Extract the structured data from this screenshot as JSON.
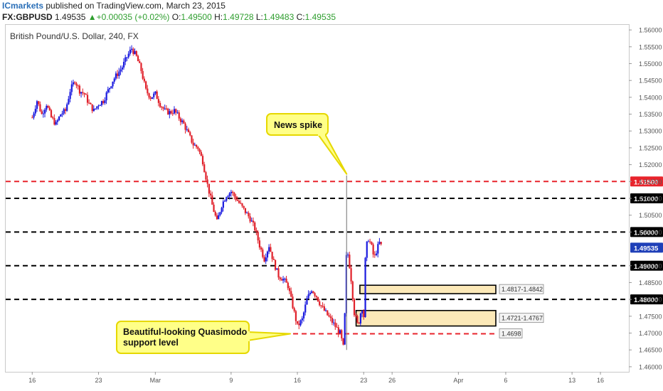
{
  "header": {
    "publisher": "ICmarkets",
    "published_text": "published on TradingView.com, March 23, 2015",
    "symbol": "FX:GBPUSD",
    "last": "1.49535",
    "change_arrow": "▲",
    "change": "+0.00035 (+0.02%)",
    "o_label": "O:",
    "o_value": "1.49500",
    "h_label": "H:",
    "h_value": "1.49728",
    "l_label": "L:",
    "l_value": "1.49483",
    "c_label": "C:",
    "c_value": "1.49535"
  },
  "colors": {
    "bull": "#1a1adf",
    "bear": "#e0202a",
    "red_level": "#e8242c",
    "black_level": "#000000",
    "zone_fill": "#fce9b8",
    "callout_fill": "#ffff88",
    "callout_border": "#e6d800",
    "price_badge": "#1e3fb8"
  },
  "chart_data": {
    "type": "candlestick",
    "title": "British Pound/U.S. Dollar, 240, FX",
    "ylim": [
      1.4585,
      1.5615
    ],
    "y_ticks": [
      "1.56000",
      "1.55500",
      "1.55000",
      "1.54500",
      "1.54000",
      "1.53500",
      "1.53000",
      "1.52500",
      "1.52000",
      "1.51500",
      "1.51000",
      "1.50500",
      "1.50000",
      "1.49535",
      "1.49000",
      "1.48500",
      "1.48000",
      "1.47500",
      "1.47000",
      "1.46500",
      "1.46000"
    ],
    "x_ticks": [
      {
        "label": "16",
        "day": 16
      },
      {
        "label": "23",
        "day": 23
      },
      {
        "label": "Mar",
        "day": 29
      },
      {
        "label": "9",
        "day": 37
      },
      {
        "label": "16",
        "day": 44
      },
      {
        "label": "23",
        "day": 51
      },
      {
        "label": "26",
        "day": 54
      },
      {
        "label": "Apr",
        "day": 61
      },
      {
        "label": "6",
        "day": 66
      },
      {
        "label": "13",
        "day": 73
      },
      {
        "label": "16",
        "day": 76
      }
    ],
    "x_axis_unit": "day (16 = Feb 16, 2015)",
    "price_path": [
      [
        16.0,
        1.534
      ],
      [
        16.5,
        1.539
      ],
      [
        17.0,
        1.535
      ],
      [
        17.5,
        1.538
      ],
      [
        18.0,
        1.534
      ],
      [
        18.5,
        1.532
      ],
      [
        19.0,
        1.535
      ],
      [
        19.5,
        1.536
      ],
      [
        20.0,
        1.542
      ],
      [
        20.5,
        1.545
      ],
      [
        21.0,
        1.542
      ],
      [
        21.5,
        1.541
      ],
      [
        22.0,
        1.538
      ],
      [
        22.5,
        1.536
      ],
      [
        23.0,
        1.538
      ],
      [
        23.5,
        1.539
      ],
      [
        24.0,
        1.542
      ],
      [
        24.5,
        1.545
      ],
      [
        25.0,
        1.547
      ],
      [
        25.5,
        1.549
      ],
      [
        26.0,
        1.552
      ],
      [
        26.5,
        1.5545
      ],
      [
        27.0,
        1.552
      ],
      [
        27.5,
        1.548
      ],
      [
        28.0,
        1.542
      ],
      [
        28.5,
        1.54
      ],
      [
        29.0,
        1.541
      ],
      [
        29.5,
        1.538
      ],
      [
        30.0,
        1.536
      ],
      [
        30.5,
        1.5355
      ],
      [
        31.0,
        1.536
      ],
      [
        31.5,
        1.534
      ],
      [
        32.0,
        1.532
      ],
      [
        32.5,
        1.529
      ],
      [
        33.0,
        1.526
      ],
      [
        33.5,
        1.525
      ],
      [
        34.0,
        1.521
      ],
      [
        34.5,
        1.514
      ],
      [
        35.0,
        1.508
      ],
      [
        35.5,
        1.503
      ],
      [
        36.0,
        1.508
      ],
      [
        36.5,
        1.511
      ],
      [
        37.0,
        1.512
      ],
      [
        37.5,
        1.51
      ],
      [
        38.0,
        1.508
      ],
      [
        38.5,
        1.506
      ],
      [
        39.0,
        1.504
      ],
      [
        39.5,
        1.501
      ],
      [
        40.0,
        1.496
      ],
      [
        40.5,
        1.492
      ],
      [
        41.0,
        1.496
      ],
      [
        41.5,
        1.491
      ],
      [
        42.0,
        1.487
      ],
      [
        42.5,
        1.486
      ],
      [
        43.0,
        1.484
      ],
      [
        43.5,
        1.478
      ],
      [
        44.0,
        1.472
      ],
      [
        44.5,
        1.474
      ],
      [
        45.0,
        1.48
      ],
      [
        45.5,
        1.483
      ],
      [
        46.0,
        1.481
      ],
      [
        46.5,
        1.478
      ],
      [
        47.0,
        1.476
      ],
      [
        47.5,
        1.474
      ],
      [
        48.0,
        1.472
      ],
      [
        48.5,
        1.47
      ],
      [
        48.9,
        1.465
      ],
      [
        49.2,
        1.496
      ],
      [
        49.6,
        1.488
      ],
      [
        50.0,
        1.476
      ],
      [
        50.4,
        1.472
      ],
      [
        50.8,
        1.478
      ],
      [
        51.0,
        1.475
      ],
      [
        51.2,
        1.495
      ],
      [
        51.5,
        1.498
      ],
      [
        51.8,
        1.496
      ],
      [
        52.1,
        1.492
      ],
      [
        52.4,
        1.495
      ],
      [
        52.7,
        1.497
      ],
      [
        52.9,
        1.4954
      ]
    ],
    "spike": {
      "day": 49.2,
      "low": 1.465,
      "high": 1.5168
    },
    "levels": [
      {
        "price": 1.515,
        "label": "1.51500",
        "color": "red"
      },
      {
        "price": 1.51,
        "label": "1.51000",
        "color": "black"
      },
      {
        "price": 1.5,
        "label": "1.50000",
        "color": "black"
      },
      {
        "price": 1.49,
        "label": "1.49000",
        "color": "black"
      },
      {
        "price": 1.48,
        "label": "1.48000",
        "color": "black"
      },
      {
        "price": 1.4698,
        "label": "1.4698",
        "color": "red"
      }
    ],
    "current_price": {
      "price": 1.49535,
      "label": "1.49535"
    },
    "zones": [
      {
        "low": 1.4817,
        "high": 1.4842,
        "label": "1.4817-1.4842",
        "start_day": 50.6
      },
      {
        "low": 1.4721,
        "high": 1.4767,
        "label": "1.4721-1.4767",
        "start_day": 50.2
      }
    ],
    "annotations": [
      {
        "text": "News spike",
        "target_day": 49.2,
        "target_price": 1.5168
      },
      {
        "text": "Beautiful-looking Quasimodo support level",
        "lines": [
          "Beautiful-looking Quasimodo",
          "support level"
        ],
        "target_day": 43.7,
        "target_price": 1.4698
      }
    ]
  }
}
